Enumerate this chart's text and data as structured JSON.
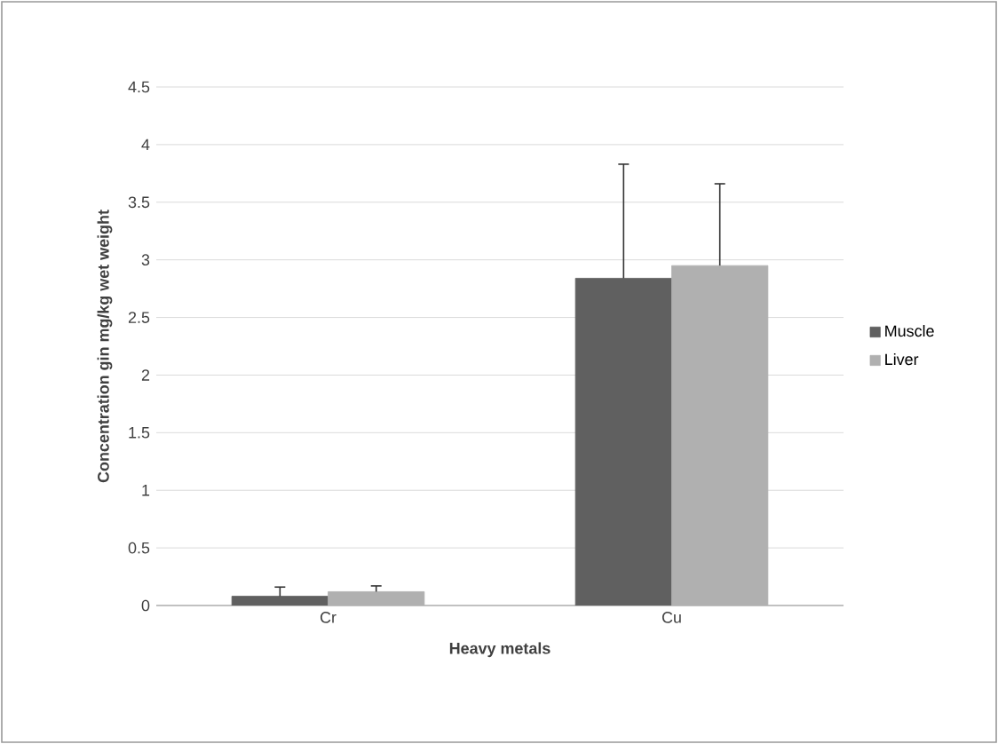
{
  "chart_data": {
    "type": "bar",
    "xlabel": "Heavy metals",
    "ylabel": "Concentration gin mg/kg wet weight",
    "categories": [
      "Cr",
      "Cu"
    ],
    "series": [
      {
        "name": "Muscle",
        "color": "#606060",
        "values": [
          0.08,
          2.84
        ],
        "errors": [
          [
            0.08,
            0.16
          ],
          [
            2.84,
            3.83
          ]
        ]
      },
      {
        "name": "Liver",
        "color": "#b0b0b0",
        "values": [
          0.12,
          2.95
        ],
        "errors": [
          [
            0.12,
            0.17
          ],
          [
            2.95,
            3.66
          ]
        ]
      }
    ],
    "ylim": [
      0,
      4.5
    ],
    "yticks": [
      0,
      0.5,
      1,
      1.5,
      2,
      2.5,
      3,
      3.5,
      4,
      4.5
    ],
    "grid": "y",
    "legend": "right"
  }
}
